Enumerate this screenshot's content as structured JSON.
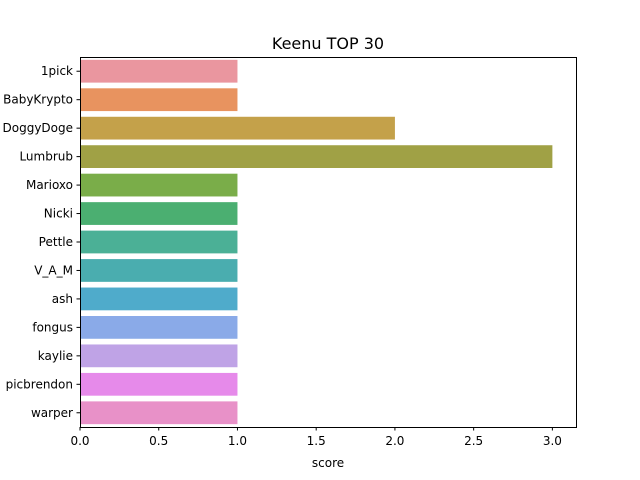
{
  "chart_data": {
    "type": "bar",
    "orientation": "horizontal",
    "title": "Keenu TOP 30",
    "xlabel": "score",
    "ylabel": "",
    "xlim": [
      0,
      3.15
    ],
    "xticks": [
      "0.0",
      "0.5",
      "1.0",
      "1.5",
      "2.0",
      "2.5",
      "3.0"
    ],
    "categories": [
      "1pick",
      "BabyKrypto",
      "DoggyDoge",
      "Lumbrub",
      "Marioxo",
      "Nicki",
      "Pettle",
      "V_A_M",
      "ash",
      "fongus",
      "kaylie",
      "picbrendon",
      "warper"
    ],
    "values": [
      1,
      1,
      2,
      3,
      1,
      1,
      1,
      1,
      1,
      1,
      1,
      1,
      1
    ],
    "colors": [
      "#ea969f",
      "#e8935f",
      "#c4a14a",
      "#a0a145",
      "#7aad49",
      "#4baf71",
      "#4bb096",
      "#4aadaf",
      "#4fabcb",
      "#8aaae8",
      "#bfa3e6",
      "#e68aea",
      "#e891c8"
    ],
    "grid": false,
    "legend": "none"
  }
}
